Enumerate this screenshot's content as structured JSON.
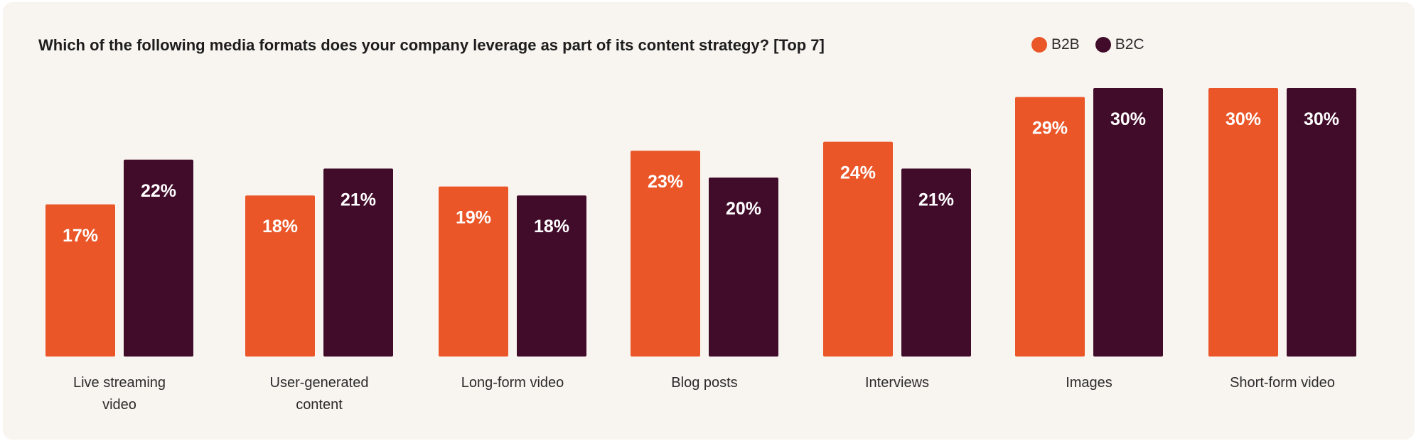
{
  "chart_data": {
    "type": "bar",
    "title": "Which of the following media formats does your company leverage as part of its content strategy? [Top 7]",
    "categories": [
      [
        "Live streaming",
        "video"
      ],
      [
        "User-generated",
        "content"
      ],
      [
        "Long-form video"
      ],
      [
        "Blog posts"
      ],
      [
        "Interviews"
      ],
      [
        "Images"
      ],
      [
        "Short-form video"
      ]
    ],
    "series": [
      {
        "name": "B2B",
        "color": "#ea5628",
        "values": [
          17,
          18,
          19,
          23,
          24,
          29,
          30
        ]
      },
      {
        "name": "B2C",
        "color": "#410b2a",
        "values": [
          22,
          21,
          18,
          20,
          21,
          30,
          30
        ]
      }
    ],
    "value_suffix": "%",
    "ylim": [
      0,
      30
    ],
    "grid": false,
    "legend_position": "top-right",
    "background": "#f8f5f0"
  }
}
